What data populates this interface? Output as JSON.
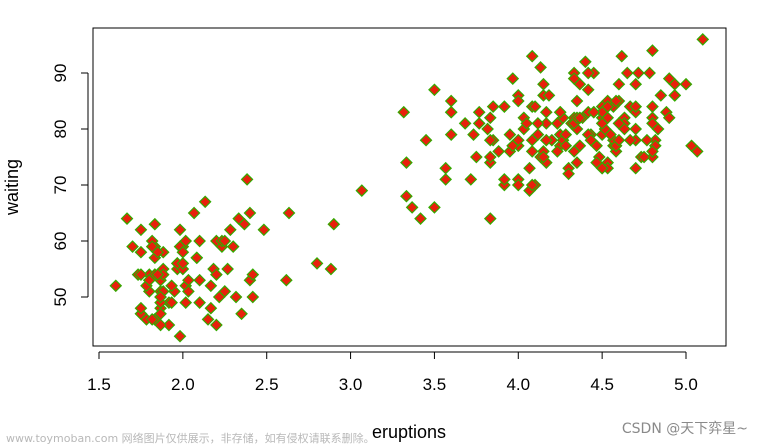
{
  "chart_data": {
    "type": "scatter",
    "title": "",
    "xlabel": "eruptions",
    "ylabel": "waiting",
    "xlim": [
      1.5,
      5.1
    ],
    "ylim": [
      43,
      96
    ],
    "x_ticks": [
      "1.5",
      "2.0",
      "2.5",
      "3.0",
      "3.5",
      "4.0",
      "4.5",
      "5.0"
    ],
    "y_ticks": [
      "50",
      "60",
      "70",
      "80",
      "90"
    ],
    "grid": false,
    "marker": "diamond",
    "marker_fill": "#e8200c",
    "marker_edge": "#33aa00",
    "x": [
      3.6,
      1.8,
      3.333,
      2.283,
      4.533,
      2.883,
      4.7,
      3.6,
      1.95,
      4.35,
      1.833,
      3.917,
      4.2,
      1.75,
      4.7,
      2.167,
      1.75,
      4.8,
      1.6,
      4.25,
      1.8,
      1.75,
      3.45,
      3.067,
      4.533,
      3.6,
      1.967,
      4.083,
      3.85,
      4.433,
      4.3,
      4.467,
      3.367,
      4.033,
      3.833,
      2.017,
      1.867,
      4.833,
      1.833,
      4.783,
      4.35,
      1.883,
      4.567,
      1.75,
      4.533,
      3.317,
      3.833,
      2.1,
      4.633,
      2.0,
      4.8,
      4.716,
      1.833,
      4.833,
      1.733,
      4.883,
      3.717,
      1.667,
      4.567,
      4.317,
      2.233,
      4.5,
      1.75,
      4.8,
      1.817,
      4.4,
      4.167,
      4.7,
      2.067,
      4.7,
      4.033,
      1.967,
      4.5,
      4.0,
      1.983,
      5.067,
      2.017,
      4.567,
      3.883,
      3.6,
      4.133,
      4.333,
      4.1,
      2.633,
      4.067,
      4.933,
      3.95,
      4.517,
      2.167,
      4.0,
      2.2,
      4.333,
      1.867,
      4.817,
      1.833,
      4.3,
      4.667,
      3.75,
      1.867,
      4.9,
      2.483,
      4.367,
      2.1,
      4.5,
      4.05,
      1.867,
      4.7,
      1.783,
      4.85,
      3.683,
      4.733,
      2.3,
      4.9,
      4.417,
      1.7,
      4.633,
      2.317,
      4.6,
      1.817,
      4.417,
      2.617,
      4.067,
      4.25,
      1.967,
      4.6,
      3.767,
      1.917,
      4.5,
      2.267,
      4.65,
      1.867,
      4.167,
      2.8,
      4.333,
      1.833,
      4.383,
      1.883,
      4.933,
      2.033,
      3.733,
      4.233,
      2.233,
      4.533,
      4.817,
      4.333,
      1.983,
      4.633,
      2.017,
      5.1,
      1.8,
      5.033,
      4.0,
      2.4,
      4.6,
      3.567,
      4.0,
      4.5,
      4.083,
      1.8,
      3.967,
      2.2,
      4.15,
      2.0,
      3.833,
      3.5,
      4.583,
      2.367,
      5.0,
      1.933,
      4.617,
      1.917,
      2.083,
      4.583,
      3.333,
      4.167,
      4.333,
      4.5,
      2.417,
      4.0,
      4.167,
      1.883,
      4.583,
      4.25,
      3.767,
      2.033,
      4.433,
      4.083,
      1.833,
      4.417,
      2.183,
      4.8,
      1.833,
      4.8,
      4.1,
      3.966,
      4.233,
      3.5,
      4.366,
      2.25,
      4.667,
      2.1,
      4.35,
      4.133,
      1.867,
      4.6,
      1.783,
      4.367,
      3.85,
      1.933,
      4.5,
      2.383,
      4.7,
      1.867,
      3.833,
      3.417,
      4.233,
      2.4,
      4.8,
      2.0,
      4.15,
      1.867,
      4.267,
      1.75,
      4.483,
      4.0,
      4.117,
      4.083,
      4.267,
      3.917,
      4.55,
      4.083,
      2.417,
      4.183,
      2.217,
      4.45,
      1.883,
      1.85,
      4.283,
      3.95,
      2.333,
      4.15,
      2.35,
      4.933,
      2.9,
      4.583,
      3.833,
      2.083,
      4.367,
      2.133,
      4.35,
      2.2,
      4.45,
      3.567,
      4.5,
      4.15,
      3.817,
      3.917,
      4.45,
      2.0,
      4.283,
      4.767,
      4.533,
      1.85,
      4.25,
      1.983,
      2.25,
      4.75,
      4.117,
      2.15,
      4.417,
      1.817,
      4.467
    ],
    "y": [
      79,
      54,
      74,
      62,
      85,
      55,
      88,
      85,
      51,
      85,
      54,
      84,
      78,
      47,
      83,
      52,
      62,
      84,
      52,
      79,
      51,
      47,
      78,
      69,
      74,
      83,
      55,
      76,
      78,
      79,
      73,
      77,
      66,
      80,
      74,
      52,
      48,
      80,
      59,
      90,
      80,
      58,
      84,
      58,
      73,
      83,
      64,
      53,
      82,
      59,
      75,
      90,
      54,
      80,
      54,
      83,
      71,
      64,
      77,
      81,
      59,
      84,
      48,
      82,
      60,
      92,
      78,
      78,
      65,
      73,
      82,
      56,
      79,
      71,
      62,
      76,
      60,
      78,
      76,
      83,
      75,
      82,
      70,
      65,
      73,
      88,
      76,
      80,
      48,
      86,
      60,
      90,
      50,
      78,
      63,
      72,
      84,
      75,
      51,
      82,
      62,
      88,
      49,
      83,
      81,
      47,
      84,
      52,
      86,
      81,
      75,
      59,
      89,
      79,
      59,
      81,
      50,
      85,
      59,
      87,
      53,
      69,
      77,
      56,
      88,
      81,
      45,
      82,
      55,
      90,
      45,
      83,
      56,
      89,
      46,
      82,
      51,
      86,
      53,
      79,
      81,
      60,
      82,
      77,
      76,
      59,
      80,
      49,
      96,
      53,
      77,
      77,
      65,
      81,
      71,
      70,
      81,
      93,
      53,
      89,
      45,
      86,
      58,
      78,
      66,
      76,
      63,
      88,
      52,
      93,
      49,
      57,
      77,
      68,
      81,
      81,
      73,
      50,
      85,
      74,
      55,
      77,
      83,
      83,
      51,
      78,
      84,
      46,
      83,
      55,
      81,
      57,
      76,
      84,
      77,
      81,
      87,
      77,
      51,
      78,
      60,
      82,
      91,
      53,
      78,
      46,
      77,
      84,
      49,
      83,
      71,
      80,
      49,
      75,
      64,
      76,
      53,
      94,
      55,
      76,
      50,
      82,
      54,
      75,
      78,
      79,
      78,
      78,
      70,
      79,
      70,
      54,
      86,
      50,
      90,
      54,
      54,
      77,
      79,
      64,
      75,
      47,
      86,
      63,
      85,
      82,
      57,
      82,
      67,
      74,
      54,
      83,
      73,
      73,
      88,
      80,
      71,
      83,
      56,
      79,
      78,
      84,
      58,
      83,
      43,
      60,
      75,
      81,
      46,
      90,
      46,
      74
    ]
  },
  "watermark": {
    "left_text": "www.toymoban.com 网络图片仅供展示，非存储，如有侵权请联系删除。",
    "right_text": "CSDN @天下弈星~"
  }
}
